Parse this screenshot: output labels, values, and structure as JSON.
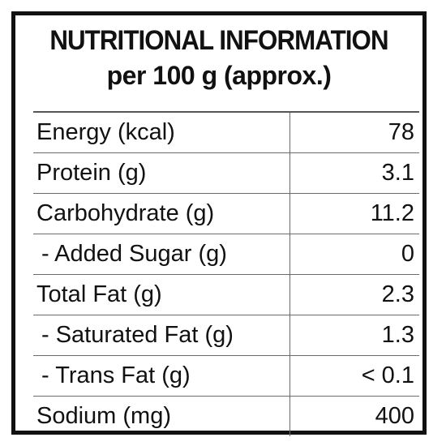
{
  "label": {
    "title": "NUTRITIONAL INFORMATION",
    "subtitle": "per 100 g (approx.)",
    "rows": [
      {
        "name": "Energy (kcal)",
        "value": "78"
      },
      {
        "name": "Protein (g)",
        "value": "3.1"
      },
      {
        "name": "Carbohydrate (g)",
        "value": "11.2"
      },
      {
        "name": "- Added Sugar (g)",
        "value": "0"
      },
      {
        "name": "Total Fat (g)",
        "value": "2.3"
      },
      {
        "name": "- Saturated Fat (g)",
        "value": "1.3"
      },
      {
        "name": "- Trans Fat (g)",
        "value": "< 0.1"
      },
      {
        "name": "Sodium (mg)",
        "value": "400"
      }
    ]
  },
  "colors": {
    "ink": "#111111",
    "rule": "#6b6b6b",
    "background": "#ffffff"
  }
}
